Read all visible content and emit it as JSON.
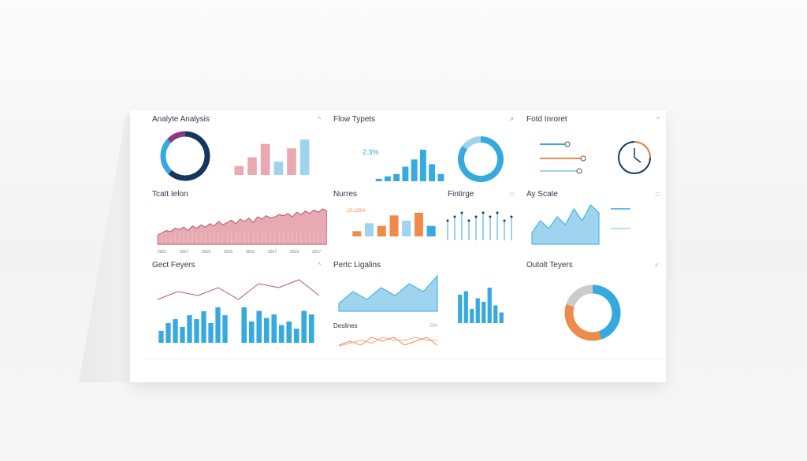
{
  "colors": {
    "navy": "#15375f",
    "blue": "#36a9df",
    "lightblue": "#9fd4ee",
    "pink": "#e8a9b2",
    "pinkline": "#b5565e",
    "salmon": "#f0a48c",
    "orange": "#f08a4b",
    "purple": "#8c3b7a",
    "gray": "#cccccc"
  },
  "panels": {
    "p1": {
      "title": "Analyte Analysis",
      "caret": "^"
    },
    "p2": {
      "title": "Flow Typets",
      "caret": "↗",
      "value": "2.3%"
    },
    "p3": {
      "title": "Fotd Inroret",
      "caret": "^"
    },
    "p4": {
      "title": "Tcatt Ielon"
    },
    "p5": {
      "title": "Nurres",
      "value": "15.125%"
    },
    "p6": {
      "title": "Fintirge",
      "caret": "□"
    },
    "p7": {
      "title": "Ay Scate",
      "caret": "□"
    },
    "p8": {
      "title": "Pertc Ligalins"
    },
    "p9": {
      "title": "Gect Feyers",
      "caret": "^"
    },
    "p10": {
      "title": "Deslines",
      "caret": "C%"
    },
    "p11": {
      "title": "Outolt Teyers",
      "caret": "✓"
    }
  },
  "chart_data": [
    {
      "type": "pie",
      "title": "Analyte Analysis",
      "values": [
        62,
        25,
        13
      ],
      "colors": [
        "#15375f",
        "#36a9df",
        "#8c3b7a"
      ]
    },
    {
      "type": "bar",
      "title": "Analyte Analysis",
      "values": [
        2,
        4,
        7,
        3,
        6,
        8
      ],
      "colors": [
        "#e8a9b2",
        "#e8a9b2",
        "#e8a9b2",
        "#9fd4ee",
        "#e8a9b2",
        "#9fd4ee"
      ]
    },
    {
      "type": "bar",
      "title": "Flow Typets",
      "values": [
        1,
        2,
        3,
        6,
        9,
        13,
        7,
        3
      ]
    },
    {
      "type": "pie",
      "title": "Flow Typets",
      "values": [
        85,
        15
      ],
      "colors": [
        "#36a9df",
        "#9fd4ee"
      ]
    },
    {
      "type": "area",
      "title": "Tcatt Ielon",
      "values": [
        8,
        10,
        12,
        11,
        14,
        13,
        15,
        12,
        16,
        14,
        17,
        15,
        18,
        16,
        20,
        17,
        19,
        21,
        18,
        22,
        20,
        23,
        19,
        24,
        22,
        25,
        23,
        24,
        26,
        25,
        27,
        24,
        28,
        26,
        29,
        27,
        30,
        28,
        31,
        29
      ],
      "x_labels": [
        "2021",
        "2017",
        "2015",
        "2015",
        "2010",
        "2017",
        "2015",
        "2017"
      ]
    },
    {
      "type": "bar",
      "title": "Nurres",
      "values": [
        2,
        5,
        4,
        8,
        6,
        9,
        4
      ],
      "colors": [
        "#f08a4b",
        "#9fd4ee",
        "#f08a4b",
        "#f08a4b",
        "#9fd4ee",
        "#f08a4b",
        "#36a9df"
      ]
    },
    {
      "type": "scatter",
      "title": "Fintirge",
      "values": [
        5,
        6,
        7,
        5,
        6,
        7,
        6,
        7,
        5,
        6
      ]
    },
    {
      "type": "area",
      "title": "Ay Scate",
      "values": [
        3,
        6,
        4,
        7,
        5,
        9,
        6,
        10,
        8
      ]
    },
    {
      "type": "area",
      "title": "Pertc Ligalins",
      "values": [
        2,
        5,
        3,
        6,
        4,
        7,
        5,
        9
      ]
    },
    {
      "type": "bar",
      "title": "Pertc Ligalins",
      "values": [
        8,
        9,
        4,
        7,
        6,
        10,
        5,
        3
      ]
    },
    {
      "type": "line",
      "title": "Deslines",
      "series": [
        {
          "values": [
            3,
            4,
            3,
            5,
            4,
            5,
            3,
            4,
            5,
            3
          ]
        },
        {
          "values": [
            2,
            3,
            4,
            3,
            5,
            4,
            4,
            5,
            4,
            4
          ]
        }
      ]
    },
    {
      "type": "line",
      "title": "Gect Feyers",
      "values": [
        4,
        6,
        5,
        7,
        4,
        8,
        7,
        9,
        5
      ]
    },
    {
      "type": "bar",
      "title": "Gect Feyers",
      "values": [
        3,
        5,
        6,
        4,
        7,
        6,
        8,
        5,
        9,
        7,
        10,
        6,
        9,
        7,
        8,
        5,
        6,
        4,
        9,
        8
      ]
    },
    {
      "type": "pie",
      "title": "Outolt Teyers",
      "values": [
        45,
        35,
        20
      ],
      "colors": [
        "#36a9df",
        "#f08a4b",
        "#cccccc"
      ]
    }
  ]
}
